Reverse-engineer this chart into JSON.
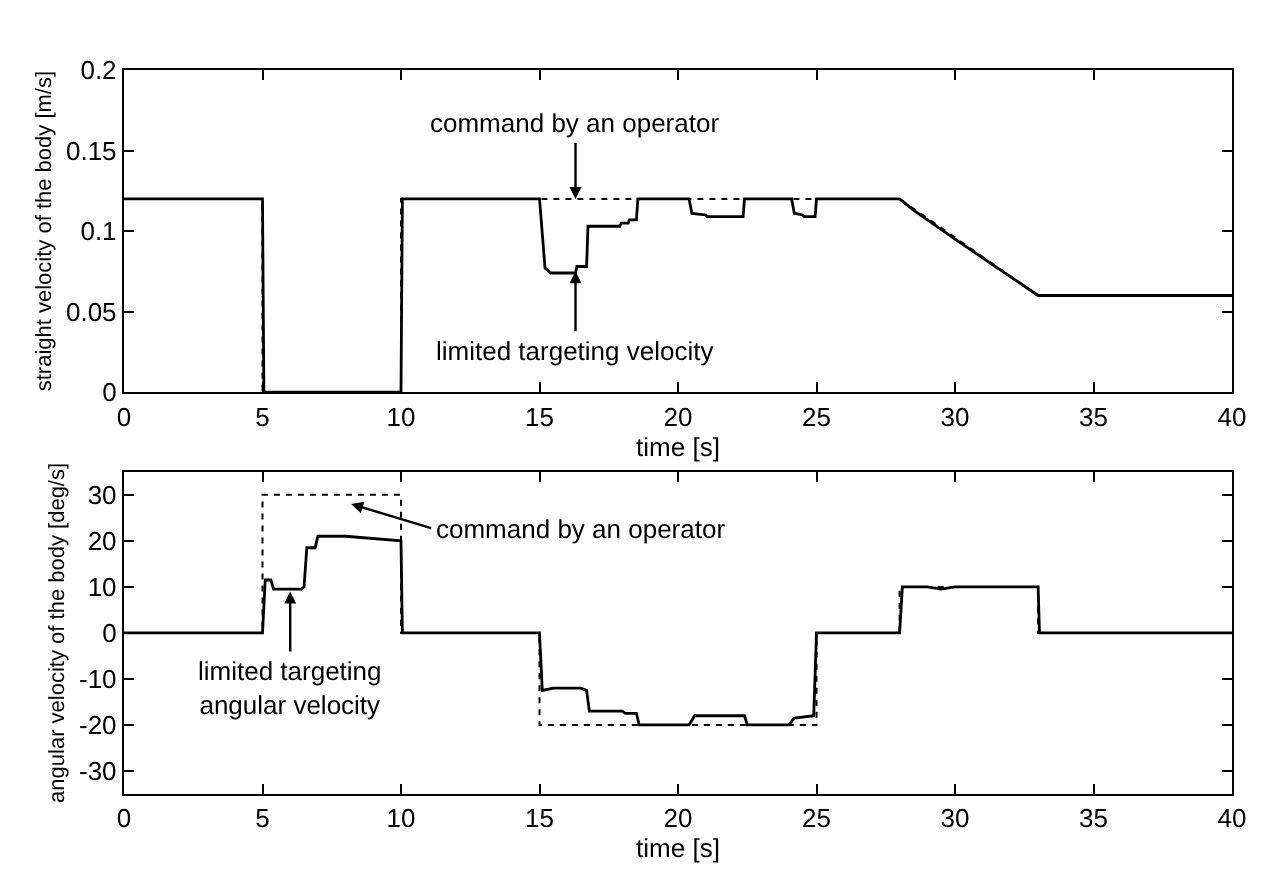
{
  "chart_data": [
    {
      "type": "line",
      "xlabel": "time [s]",
      "ylabel": "straight velocity of the body [m/s]",
      "xlim": [
        0,
        40
      ],
      "xticks": [
        0,
        5,
        10,
        15,
        20,
        25,
        30,
        35,
        40
      ],
      "ylim": [
        0,
        0.2
      ],
      "yticks": [
        0,
        0.05,
        0.1,
        0.15,
        0.2
      ],
      "marker": "none",
      "series": [
        {
          "color": "#000000",
          "line_style": "dotted",
          "x": [
            0,
            5,
            5,
            10,
            10,
            28,
            33,
            40
          ],
          "values": [
            0.12,
            0.12,
            0,
            0,
            0.12,
            0.12,
            0.06,
            0.06
          ]
        },
        {
          "color": "#000000",
          "line_style": "solid",
          "x": [
            0,
            5,
            5.05,
            10,
            10.05,
            15,
            15.2,
            15.4,
            16.3,
            16.35,
            16.7,
            16.75,
            17.9,
            17.95,
            18.2,
            18.25,
            18.5,
            18.55,
            20.4,
            20.5,
            21,
            21.05,
            22.35,
            22.4,
            24.1,
            24.2,
            24.5,
            24.55,
            24.95,
            25,
            28,
            28.5,
            30,
            33,
            40
          ],
          "values": [
            0.12,
            0.12,
            0,
            0,
            0.12,
            0.12,
            0.077,
            0.074,
            0.074,
            0.078,
            0.078,
            0.103,
            0.103,
            0.105,
            0.105,
            0.107,
            0.107,
            0.12,
            0.12,
            0.111,
            0.11,
            0.109,
            0.109,
            0.12,
            0.12,
            0.111,
            0.11,
            0.109,
            0.109,
            0.12,
            0.12,
            0.113,
            0.095,
            0.06,
            0.06
          ]
        }
      ],
      "annotations": [
        {
          "text": "command by an operator",
          "x": 16.3,
          "y": 0.12
        },
        {
          "text": "limited targeting velocity",
          "x": 16.3,
          "y": 0.075
        }
      ]
    },
    {
      "type": "line",
      "xlabel": "time [s]",
      "ylabel": "angular velocity of the body [deg/s]",
      "xlim": [
        0,
        40
      ],
      "xticks": [
        0,
        5,
        10,
        15,
        20,
        25,
        30,
        35,
        40
      ],
      "ylim": [
        -35,
        35
      ],
      "yticks": [
        -30,
        -20,
        -10,
        0,
        10,
        20,
        30
      ],
      "marker": "none",
      "series": [
        {
          "color": "#000000",
          "line_style": "dotted",
          "x": [
            0,
            5,
            5,
            10,
            10,
            15,
            15,
            25,
            25,
            28,
            28,
            33,
            33,
            40
          ],
          "values": [
            0,
            0,
            30,
            30,
            0,
            0,
            -20,
            -20,
            0,
            0,
            10,
            10,
            0,
            0
          ]
        },
        {
          "color": "#000000",
          "line_style": "solid",
          "x": [
            0,
            5,
            5.1,
            5.3,
            5.4,
            6.4,
            6.5,
            6.6,
            6.9,
            7,
            8,
            10,
            10.05,
            15,
            15.1,
            15.5,
            16.5,
            16.7,
            16.8,
            18,
            18.1,
            18.5,
            18.6,
            20.4,
            20.6,
            22.4,
            22.5,
            24,
            24.2,
            24.9,
            25,
            28,
            28.1,
            29,
            29.5,
            30,
            33,
            33.05,
            40
          ],
          "values": [
            0,
            0,
            11.5,
            11.5,
            9.5,
            9.5,
            10,
            18.5,
            18.5,
            21,
            21,
            20,
            0,
            0,
            -12.5,
            -12,
            -12,
            -12.5,
            -17,
            -17,
            -17.5,
            -17.5,
            -20,
            -20,
            -18,
            -18,
            -20,
            -20,
            -18.5,
            -18,
            0,
            0,
            10,
            10,
            9.5,
            10,
            10,
            0,
            0
          ]
        }
      ],
      "annotations": [
        {
          "text": "command by an operator",
          "x": 8.2,
          "y": 28
        },
        {
          "text": "limited targeting\nangular velocity",
          "x": 6,
          "y": 9
        }
      ]
    }
  ]
}
